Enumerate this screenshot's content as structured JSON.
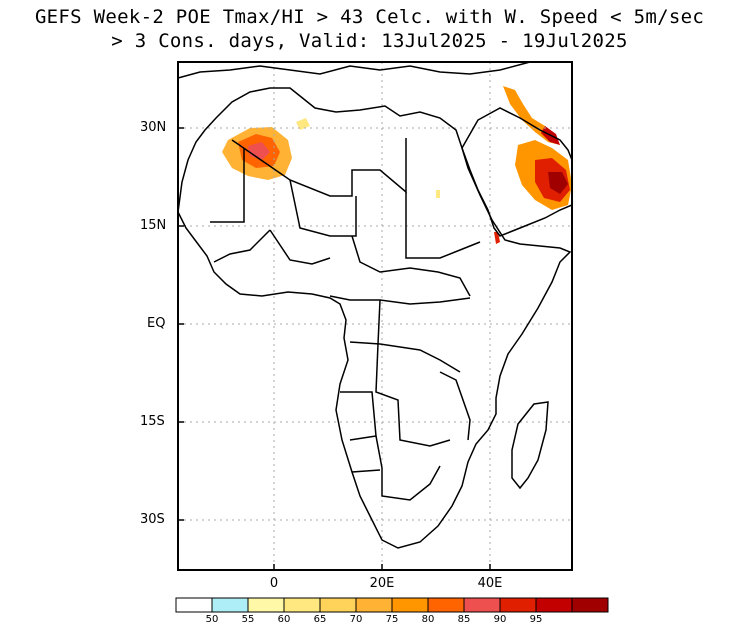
{
  "title": {
    "line1": "GEFS Week-2 POE Tmax/HI > 43 Celc. with W. Speed < 5m/sec",
    "line2": "> 3 Cons. days, Valid: 13Jul2025 - 19Jul2025"
  },
  "axes": {
    "lat_labels": [
      "30N",
      "15N",
      "EQ",
      "15S",
      "30S"
    ],
    "lon_labels": [
      "0",
      "20E",
      "40E"
    ]
  },
  "colorbar": {
    "colors": [
      "#ffffff",
      "#aeeef6",
      "#fff8a6",
      "#ffe880",
      "#ffd25a",
      "#ffb233",
      "#ff9600",
      "#ff6400",
      "#ee5050",
      "#e01e00",
      "#c30000",
      "#a00000"
    ],
    "labels": [
      "50",
      "55",
      "60",
      "65",
      "70",
      "75",
      "80",
      "85",
      "90",
      "95"
    ]
  }
}
